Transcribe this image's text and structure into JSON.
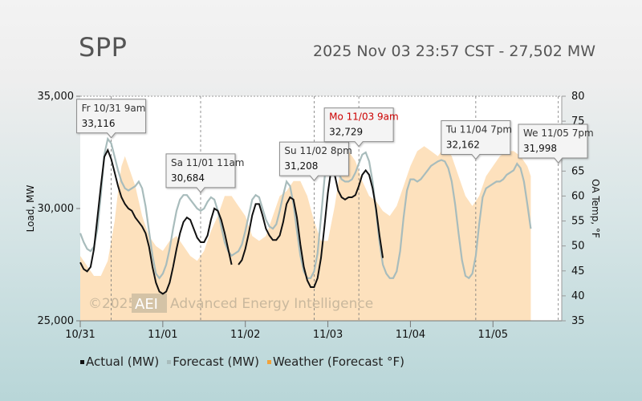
{
  "header": {
    "title": "SPP",
    "subtitle": "2025 Nov 03 23:57 CST - 27,502 MW"
  },
  "watermark": {
    "copyright": "©2025",
    "logo": "AEI",
    "company": "Advanced Energy Intelligence"
  },
  "colors": {
    "actual": "#111111",
    "forecast": "#a8bcbc",
    "weather": "#fde1bd",
    "weather_legend": "#f2a33a",
    "highlight_label": "#cc0000",
    "normal_label": "#333333"
  },
  "legend": [
    {
      "key": "actual",
      "label": "Actual (MW)"
    },
    {
      "key": "forecast",
      "label": "Forecast (MW)"
    },
    {
      "key": "weather",
      "label": "Weather (Forecast °F)"
    }
  ],
  "chart_data": {
    "type": "line",
    "x_unit": "hours since 10/31 00:00 CST",
    "x_range": [
      0,
      140
    ],
    "x_ticks": [
      {
        "h": 0,
        "label": "10/31"
      },
      {
        "h": 24,
        "label": "11/01"
      },
      {
        "h": 48,
        "label": "11/02"
      },
      {
        "h": 72,
        "label": "11/03"
      },
      {
        "h": 96,
        "label": "11/04"
      },
      {
        "h": 120,
        "label": "11/05"
      }
    ],
    "ylabel": "Load, MW",
    "ylim": [
      25000,
      35000
    ],
    "y_ticks": [
      25000,
      30000,
      35000
    ],
    "y_tick_labels": [
      "25,000",
      "30,000",
      "35,000"
    ],
    "y2label": "OA Temp, °F",
    "y2lim": [
      35,
      80
    ],
    "y2_ticks": [
      35,
      40,
      45,
      50,
      55,
      60,
      65,
      70,
      75,
      80
    ],
    "grid": "dashed vertical at each peak callout",
    "series": [
      {
        "name": "Actual (MW)",
        "axis": "left",
        "points": [
          [
            0,
            27600
          ],
          [
            1,
            27300
          ],
          [
            2,
            27200
          ],
          [
            3,
            27400
          ],
          [
            4,
            28200
          ],
          [
            5,
            29600
          ],
          [
            6,
            31000
          ],
          [
            7,
            32300
          ],
          [
            8,
            32600
          ],
          [
            9,
            32200
          ],
          [
            10,
            31600
          ],
          [
            11,
            31000
          ],
          [
            12,
            30500
          ],
          [
            13,
            30200
          ],
          [
            14,
            30000
          ],
          [
            15,
            29900
          ],
          [
            16,
            29600
          ],
          [
            17,
            29400
          ],
          [
            18,
            29200
          ],
          [
            19,
            28900
          ],
          [
            20,
            28300
          ],
          [
            21,
            27400
          ],
          [
            22,
            26700
          ],
          [
            23,
            26300
          ],
          [
            24,
            26200
          ],
          [
            25,
            26300
          ],
          [
            26,
            26700
          ],
          [
            27,
            27400
          ],
          [
            28,
            28200
          ],
          [
            29,
            28900
          ],
          [
            30,
            29400
          ],
          [
            31,
            29600
          ],
          [
            32,
            29500
          ],
          [
            33,
            29100
          ],
          [
            34,
            28700
          ],
          [
            35,
            28500
          ],
          [
            36,
            28500
          ],
          [
            37,
            28800
          ],
          [
            38,
            29500
          ],
          [
            39,
            30000
          ],
          [
            40,
            29900
          ],
          [
            41,
            29500
          ],
          [
            42,
            28900
          ],
          [
            43,
            28200
          ],
          [
            44,
            27500
          ]
        ]
      },
      {
        "name": "Actual (MW) 2",
        "axis": "left",
        "points": [
          [
            46,
            27500
          ],
          [
            47,
            27700
          ],
          [
            48,
            28200
          ],
          [
            49,
            28900
          ],
          [
            50,
            29700
          ],
          [
            51,
            30200
          ],
          [
            52,
            30200
          ],
          [
            53,
            29700
          ],
          [
            54,
            29100
          ],
          [
            55,
            28800
          ],
          [
            56,
            28600
          ],
          [
            57,
            28600
          ],
          [
            58,
            28800
          ],
          [
            59,
            29400
          ],
          [
            60,
            30200
          ],
          [
            61,
            30500
          ],
          [
            62,
            30400
          ],
          [
            63,
            29600
          ],
          [
            64,
            28400
          ],
          [
            65,
            27400
          ],
          [
            66,
            26800
          ],
          [
            67,
            26500
          ],
          [
            68,
            26500
          ],
          [
            69,
            26900
          ],
          [
            70,
            27800
          ],
          [
            71,
            29200
          ],
          [
            72,
            30700
          ],
          [
            73,
            31800
          ],
          [
            74,
            31500
          ],
          [
            75,
            30800
          ],
          [
            76,
            30500
          ],
          [
            77,
            30400
          ],
          [
            78,
            30500
          ],
          [
            79,
            30500
          ],
          [
            80,
            30600
          ],
          [
            81,
            31000
          ],
          [
            82,
            31500
          ],
          [
            83,
            31700
          ],
          [
            84,
            31500
          ],
          [
            85,
            30900
          ],
          [
            86,
            30000
          ],
          [
            87,
            28800
          ],
          [
            88,
            27800
          ]
        ]
      },
      {
        "name": "Forecast (MW)",
        "axis": "left",
        "points": [
          [
            0,
            28900
          ],
          [
            1,
            28500
          ],
          [
            2,
            28200
          ],
          [
            3,
            28100
          ],
          [
            4,
            28300
          ],
          [
            5,
            29100
          ],
          [
            6,
            30600
          ],
          [
            7,
            32400
          ],
          [
            8,
            33100
          ],
          [
            9,
            32900
          ],
          [
            10,
            32300
          ],
          [
            11,
            31700
          ],
          [
            12,
            31200
          ],
          [
            13,
            30900
          ],
          [
            14,
            30800
          ],
          [
            15,
            30900
          ],
          [
            16,
            31000
          ],
          [
            17,
            31200
          ],
          [
            18,
            30900
          ],
          [
            19,
            30100
          ],
          [
            20,
            29000
          ],
          [
            21,
            27900
          ],
          [
            22,
            27100
          ],
          [
            23,
            26900
          ],
          [
            24,
            27100
          ],
          [
            25,
            27500
          ],
          [
            26,
            28200
          ],
          [
            27,
            29100
          ],
          [
            28,
            29900
          ],
          [
            29,
            30400
          ],
          [
            30,
            30600
          ],
          [
            31,
            30600
          ],
          [
            32,
            30400
          ],
          [
            33,
            30200
          ],
          [
            34,
            30000
          ],
          [
            35,
            29900
          ],
          [
            36,
            30000
          ],
          [
            37,
            30300
          ],
          [
            38,
            30500
          ],
          [
            39,
            30400
          ],
          [
            40,
            29900
          ],
          [
            41,
            29200
          ],
          [
            42,
            28500
          ],
          [
            43,
            28100
          ],
          [
            44,
            27900
          ],
          [
            45,
            28000
          ],
          [
            46,
            28100
          ],
          [
            47,
            28400
          ],
          [
            48,
            29000
          ],
          [
            49,
            29700
          ],
          [
            50,
            30400
          ],
          [
            51,
            30600
          ],
          [
            52,
            30500
          ],
          [
            53,
            30000
          ],
          [
            54,
            29500
          ],
          [
            55,
            29200
          ],
          [
            56,
            29100
          ],
          [
            57,
            29300
          ],
          [
            58,
            29900
          ],
          [
            59,
            30600
          ],
          [
            60,
            31200
          ],
          [
            61,
            31000
          ],
          [
            62,
            30200
          ],
          [
            63,
            29000
          ],
          [
            64,
            27900
          ],
          [
            65,
            27200
          ],
          [
            66,
            26900
          ],
          [
            67,
            26900
          ],
          [
            68,
            27200
          ],
          [
            69,
            28000
          ],
          [
            70,
            29600
          ],
          [
            71,
            31300
          ],
          [
            72,
            32700
          ],
          [
            73,
            32700
          ],
          [
            74,
            32200
          ],
          [
            75,
            31600
          ],
          [
            76,
            31300
          ],
          [
            77,
            31200
          ],
          [
            78,
            31200
          ],
          [
            79,
            31300
          ],
          [
            80,
            31600
          ],
          [
            81,
            32000
          ],
          [
            82,
            32400
          ],
          [
            83,
            32500
          ],
          [
            84,
            32100
          ],
          [
            85,
            31200
          ],
          [
            86,
            29900
          ],
          [
            87,
            28500
          ],
          [
            88,
            27500
          ],
          [
            89,
            27100
          ],
          [
            90,
            26900
          ],
          [
            91,
            26900
          ],
          [
            92,
            27200
          ],
          [
            93,
            28100
          ],
          [
            94,
            29600
          ],
          [
            95,
            30800
          ],
          [
            96,
            31300
          ],
          [
            97,
            31300
          ],
          [
            98,
            31200
          ],
          [
            99,
            31300
          ],
          [
            100,
            31500
          ],
          [
            101,
            31700
          ],
          [
            102,
            31900
          ],
          [
            103,
            32000
          ],
          [
            104,
            32100
          ],
          [
            105,
            32160
          ],
          [
            106,
            32100
          ],
          [
            107,
            31800
          ],
          [
            108,
            31200
          ],
          [
            109,
            30200
          ],
          [
            110,
            28900
          ],
          [
            111,
            27700
          ],
          [
            112,
            27000
          ],
          [
            113,
            26900
          ],
          [
            114,
            27100
          ],
          [
            115,
            27900
          ],
          [
            116,
            29300
          ],
          [
            117,
            30500
          ],
          [
            118,
            30900
          ],
          [
            119,
            31000
          ],
          [
            120,
            31100
          ],
          [
            121,
            31200
          ],
          [
            122,
            31200
          ],
          [
            123,
            31300
          ],
          [
            124,
            31500
          ],
          [
            125,
            31600
          ],
          [
            126,
            31700
          ],
          [
            127,
            31998
          ],
          [
            128,
            31800
          ],
          [
            129,
            31200
          ],
          [
            130,
            30200
          ],
          [
            131,
            29100
          ]
        ]
      },
      {
        "name": "Weather (Forecast °F)",
        "axis": "right",
        "points": [
          [
            0,
            48
          ],
          [
            2,
            46
          ],
          [
            4,
            44
          ],
          [
            6,
            44
          ],
          [
            8,
            47
          ],
          [
            10,
            55
          ],
          [
            11,
            61
          ],
          [
            12,
            66
          ],
          [
            13,
            68
          ],
          [
            14,
            66
          ],
          [
            16,
            62
          ],
          [
            18,
            56
          ],
          [
            20,
            52
          ],
          [
            22,
            50
          ],
          [
            24,
            49
          ],
          [
            26,
            51
          ],
          [
            28,
            52
          ],
          [
            30,
            50
          ],
          [
            32,
            48
          ],
          [
            34,
            47
          ],
          [
            36,
            49
          ],
          [
            38,
            53
          ],
          [
            40,
            56
          ],
          [
            42,
            60
          ],
          [
            44,
            60
          ],
          [
            46,
            58
          ],
          [
            48,
            56
          ],
          [
            50,
            52
          ],
          [
            52,
            51
          ],
          [
            54,
            52
          ],
          [
            56,
            56
          ],
          [
            58,
            60
          ],
          [
            60,
            61
          ],
          [
            62,
            63
          ],
          [
            64,
            63
          ],
          [
            66,
            60
          ],
          [
            68,
            55
          ],
          [
            70,
            51
          ],
          [
            72,
            51
          ],
          [
            74,
            58
          ],
          [
            76,
            67
          ],
          [
            78,
            69
          ],
          [
            80,
            67
          ],
          [
            82,
            63
          ],
          [
            84,
            60
          ],
          [
            86,
            59
          ],
          [
            88,
            57
          ],
          [
            90,
            56
          ],
          [
            92,
            58
          ],
          [
            94,
            62
          ],
          [
            96,
            66
          ],
          [
            98,
            69
          ],
          [
            100,
            70
          ],
          [
            102,
            69
          ],
          [
            104,
            68
          ],
          [
            106,
            70
          ],
          [
            108,
            68
          ],
          [
            110,
            64
          ],
          [
            112,
            60
          ],
          [
            114,
            58
          ],
          [
            116,
            60
          ],
          [
            118,
            64
          ],
          [
            120,
            66
          ],
          [
            122,
            68
          ],
          [
            124,
            69
          ],
          [
            126,
            69
          ],
          [
            128,
            68
          ],
          [
            130,
            66
          ],
          [
            131,
            64
          ]
        ]
      }
    ],
    "annotations": [
      {
        "h": 9,
        "label": "Fr 10/31 9am",
        "value": "33,116",
        "highlight": false
      },
      {
        "h": 35,
        "label": "Sa 11/01 11am",
        "value": "30,684",
        "highlight": false
      },
      {
        "h": 68,
        "label": "Su 11/02 8pm",
        "value": "31,208",
        "highlight": false
      },
      {
        "h": 81,
        "label": "Mo 11/03 9am",
        "value": "32,729",
        "highlight": true
      },
      {
        "h": 115,
        "label": "Tu 11/04 7pm",
        "value": "32,162",
        "highlight": false
      },
      {
        "h": 139,
        "label": "We 11/05 7pm",
        "value": "31,998",
        "highlight": false
      }
    ]
  }
}
